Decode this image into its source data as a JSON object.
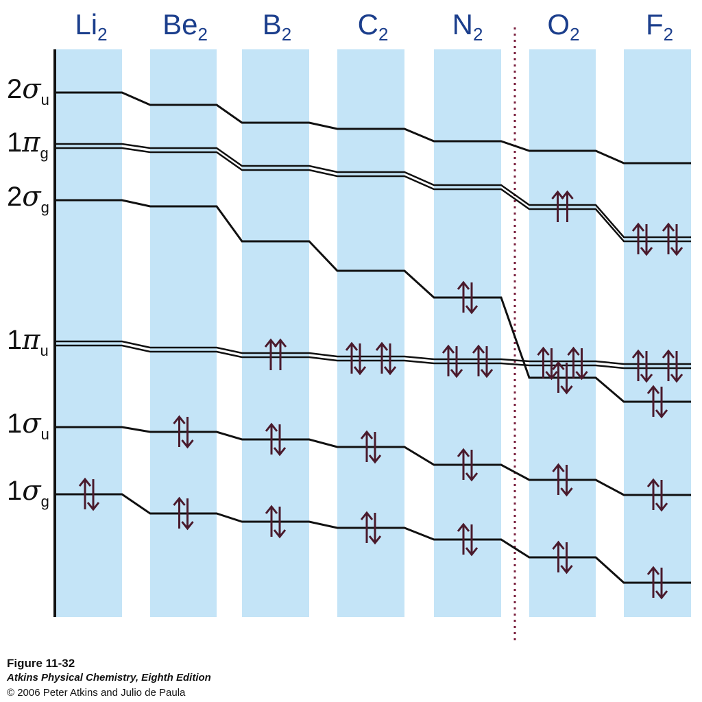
{
  "diagram": {
    "molecules": [
      {
        "element": "Li",
        "sub": "2"
      },
      {
        "element": "Be",
        "sub": "2"
      },
      {
        "element": "B",
        "sub": "2"
      },
      {
        "element": "C",
        "sub": "2"
      },
      {
        "element": "N",
        "sub": "2"
      },
      {
        "element": "O",
        "sub": "2"
      },
      {
        "element": "F",
        "sub": "2"
      }
    ],
    "orbital_labels": [
      {
        "num": "2",
        "greek": "σ",
        "sub": "u"
      },
      {
        "num": "1",
        "greek": "π",
        "sub": "g"
      },
      {
        "num": "2",
        "greek": "σ",
        "sub": "g"
      },
      {
        "num": "1",
        "greek": "π",
        "sub": "u"
      },
      {
        "num": "1",
        "greek": "σ",
        "sub": "u"
      },
      {
        "num": "1",
        "greek": "σ",
        "sub": "g"
      }
    ],
    "levels": [
      {
        "orbital": "2σu",
        "degenerate": false,
        "electrons": [
          0,
          0,
          0,
          0,
          0,
          0,
          0
        ]
      },
      {
        "orbital": "1πg",
        "degenerate": true,
        "electrons": [
          0,
          0,
          0,
          0,
          0,
          2,
          4
        ]
      },
      {
        "orbital": "2σg",
        "degenerate": false,
        "electrons": [
          0,
          0,
          0,
          0,
          2,
          2,
          2
        ]
      },
      {
        "orbital": "1πu",
        "degenerate": true,
        "electrons": [
          0,
          0,
          2,
          4,
          4,
          4,
          4
        ]
      },
      {
        "orbital": "1σu",
        "degenerate": false,
        "electrons": [
          0,
          2,
          2,
          2,
          2,
          2,
          2
        ]
      },
      {
        "orbital": "1σg",
        "degenerate": false,
        "electrons": [
          2,
          2,
          2,
          2,
          2,
          2,
          2
        ]
      }
    ],
    "colors": {
      "column": "#c4e4f7",
      "label": "#1b3e8c",
      "arrow": "#4a1a2c",
      "line": "#111111",
      "divider": "#7a1f3d"
    }
  },
  "caption": {
    "title": "Figure 11-32",
    "book": "Atkins Physical Chemistry, Eighth Edition",
    "copyright": "© 2006 Peter Atkins and Julio de Paula"
  }
}
